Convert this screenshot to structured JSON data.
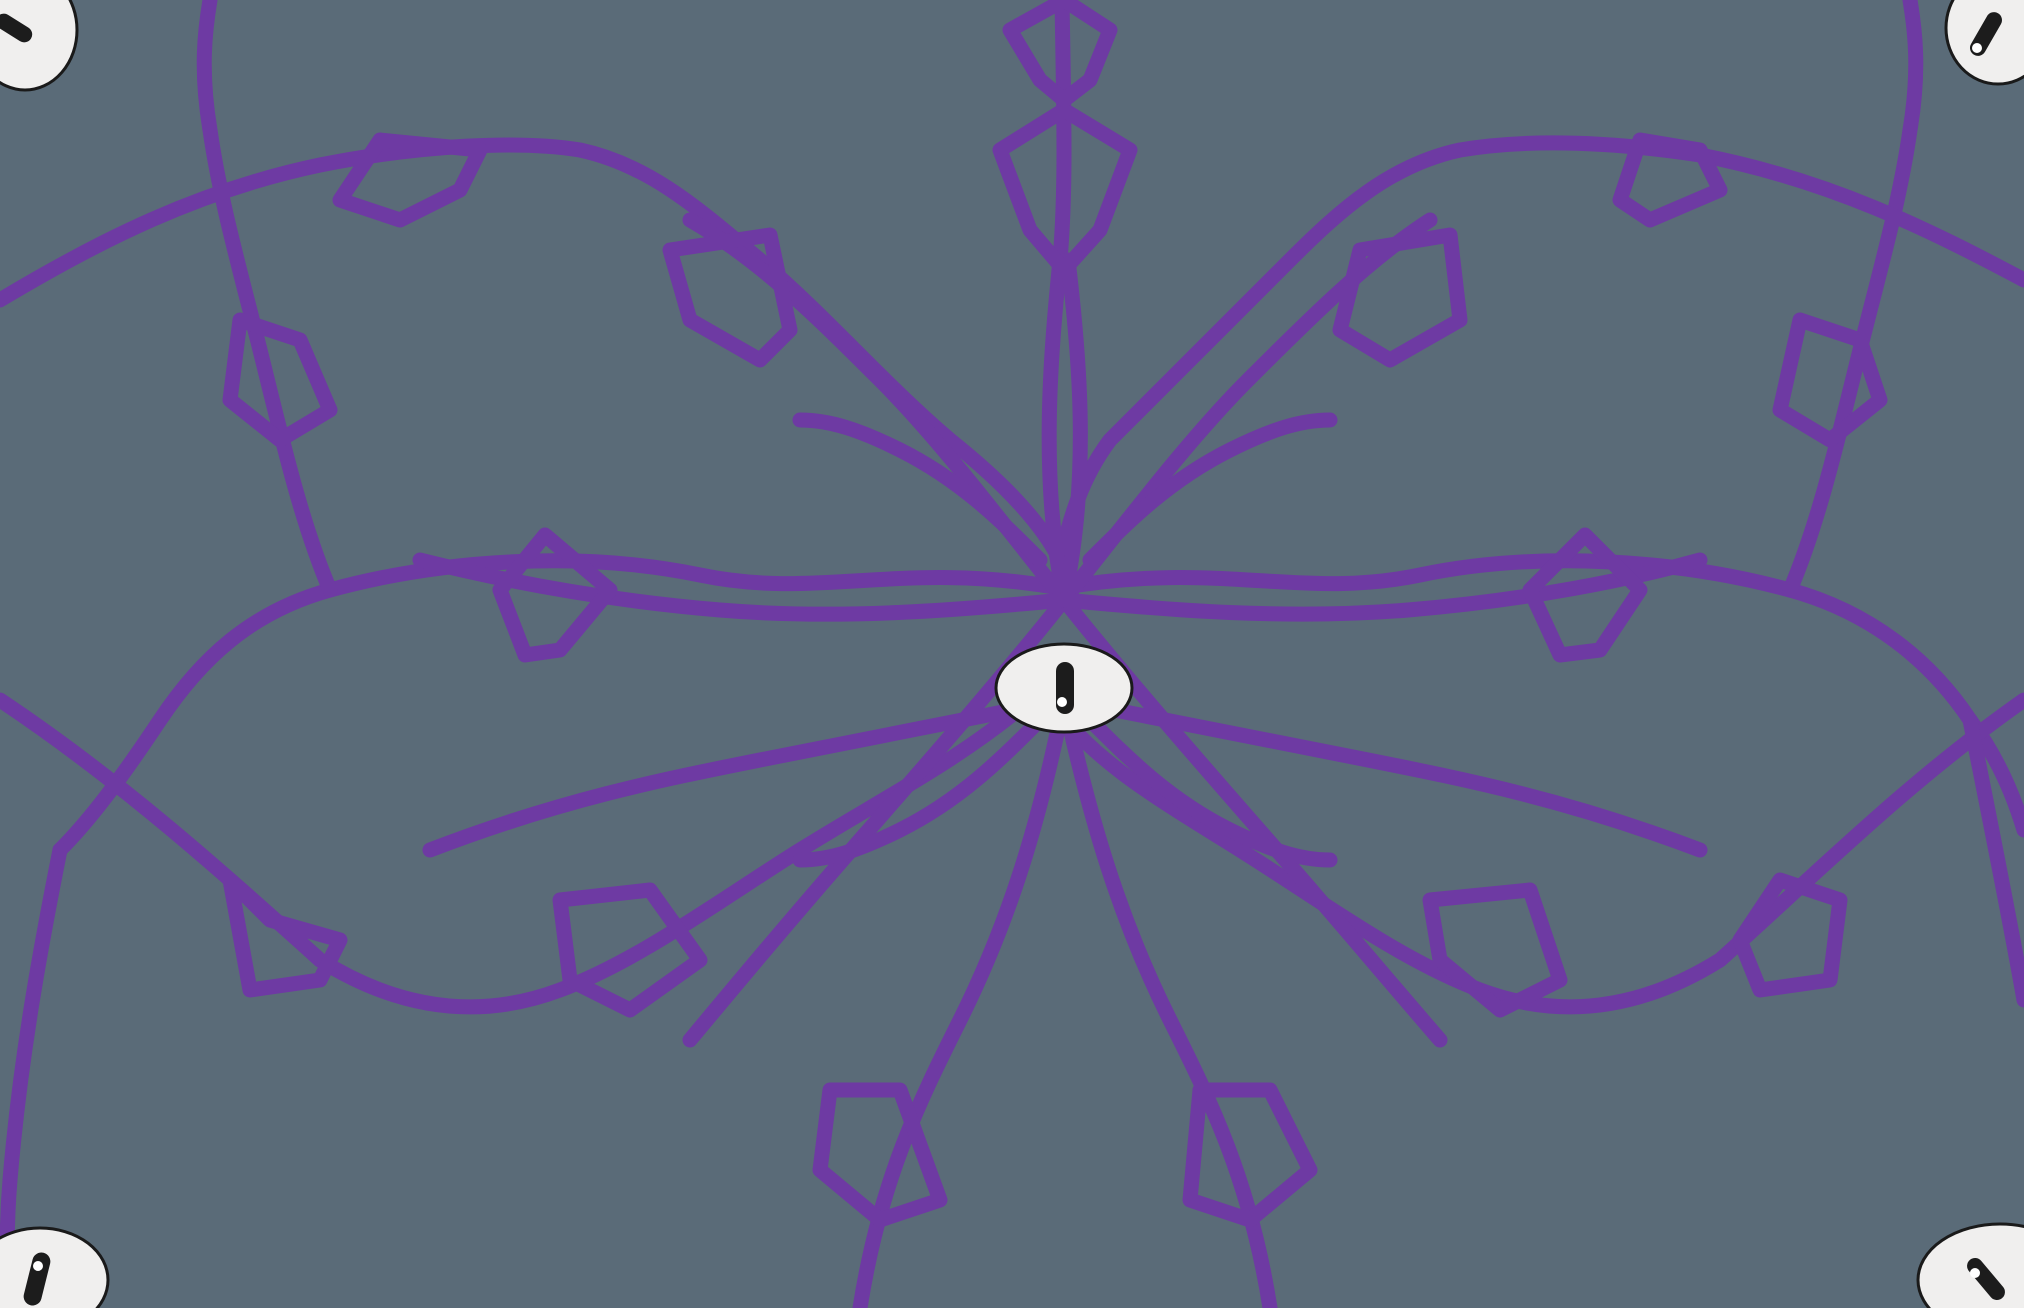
{
  "scene": {
    "description_name": "kaleidoscope-eye-pattern",
    "colors": {
      "background": "#5a6b78",
      "strand": "#6e3aa3",
      "eye_white": "#f0efee",
      "eye_outline": "#1a1a1a",
      "pupil": "#1c1c1c",
      "highlight": "#ffffff"
    },
    "center_eye": {
      "icon": "eye-icon"
    },
    "corner_eyes": [
      {
        "name": "corner-eye-top-left",
        "icon": "eye-icon"
      },
      {
        "name": "corner-eye-top-right",
        "icon": "eye-icon"
      },
      {
        "name": "corner-eye-bottom-left",
        "icon": "eye-icon"
      },
      {
        "name": "corner-eye-bottom-right",
        "icon": "eye-icon"
      }
    ],
    "arm_count": 8
  }
}
